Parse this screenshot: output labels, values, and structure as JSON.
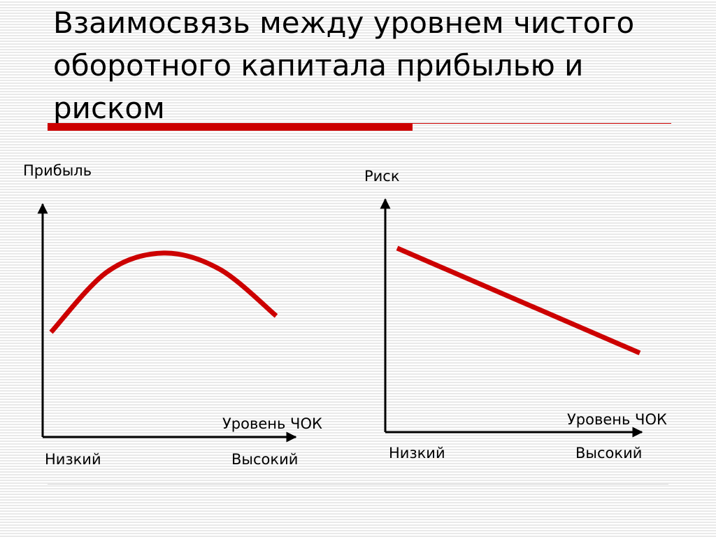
{
  "title": "Взаимосвязь между уровнем чистого оборотного капитала прибылью и риском",
  "colors": {
    "accent": "#cc0000",
    "axis": "#000000"
  },
  "chart_data": [
    {
      "type": "line",
      "ylabel": "Прибыль",
      "xlabel": "Уровень ЧОК",
      "x_tick_labels": [
        "Низкий",
        "Высокий"
      ],
      "series": [
        {
          "x": [
            0.0,
            0.25,
            0.5,
            0.75,
            1.0
          ],
          "y": [
            0.45,
            0.71,
            0.79,
            0.72,
            0.52
          ]
        }
      ]
    },
    {
      "type": "line",
      "ylabel": "Риск",
      "xlabel": "Уровень ЧОК",
      "x_tick_labels": [
        "Низкий",
        "Высокий"
      ],
      "series": [
        {
          "x": [
            0.0,
            1.0
          ],
          "y": [
            0.79,
            0.34
          ]
        }
      ]
    }
  ]
}
